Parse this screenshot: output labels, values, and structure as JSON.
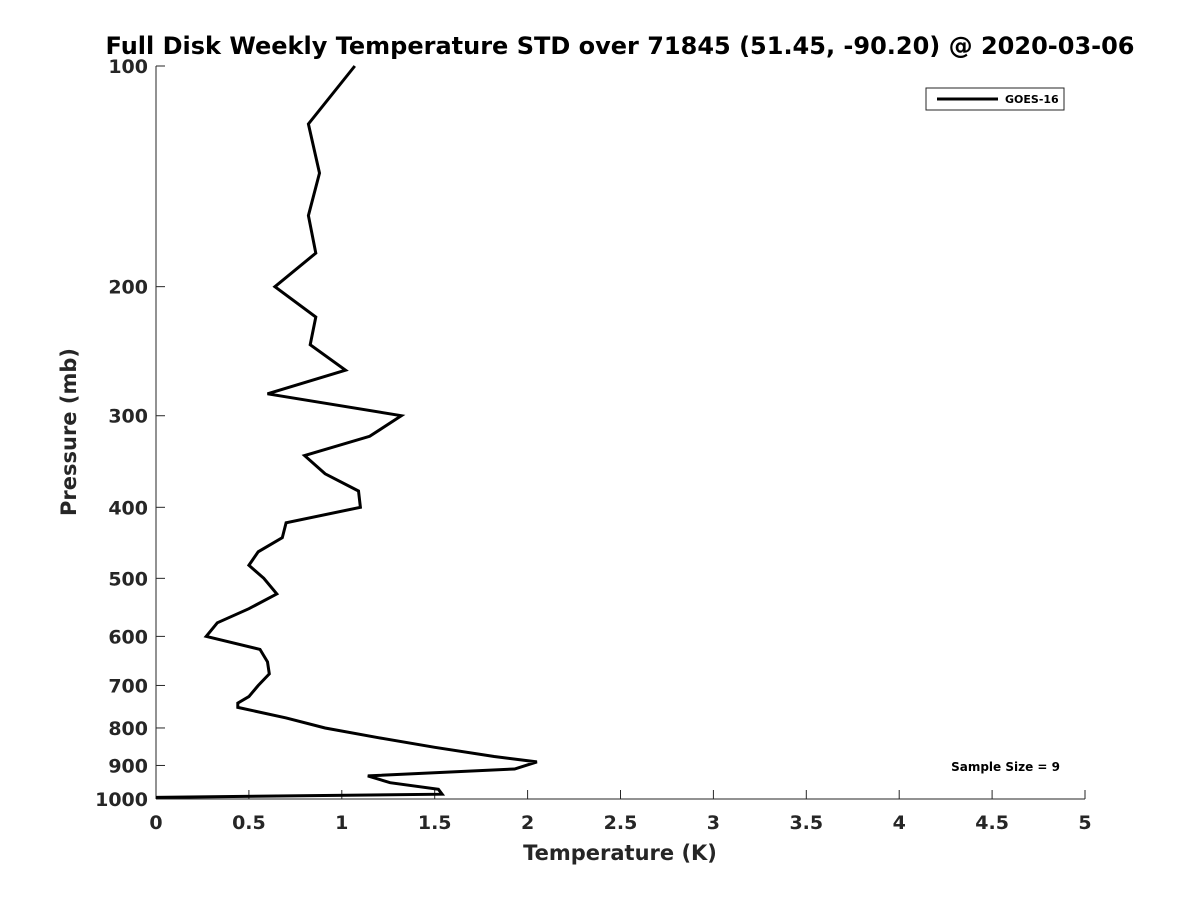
{
  "chart_data": {
    "type": "line",
    "title": "Full Disk Weekly Temperature STD over 71845 (51.45, -90.20) @ 2020-03-06",
    "xlabel": "Temperature (K)",
    "ylabel": "Pressure (mb)",
    "xlim": [
      0,
      5
    ],
    "ylim": [
      100,
      1000
    ],
    "y_scale": "log",
    "y_reversed": true,
    "x_ticks": [
      0,
      0.5,
      1,
      1.5,
      2,
      2.5,
      3,
      3.5,
      4,
      4.5,
      5
    ],
    "x_tick_labels": [
      "0",
      "0.5",
      "1",
      "1.5",
      "2",
      "2.5",
      "3",
      "3.5",
      "4",
      "4.5",
      "5"
    ],
    "y_ticks": [
      100,
      200,
      300,
      400,
      500,
      600,
      700,
      800,
      900,
      1000
    ],
    "y_tick_labels": [
      "100",
      "200",
      "300",
      "400",
      "500",
      "600",
      "700",
      "800",
      "900",
      "1000"
    ],
    "grid": false,
    "legend": {
      "placement": "top-right",
      "entries": [
        "GOES-16"
      ]
    },
    "annotation": "Sample Size = 9",
    "series": [
      {
        "name": "GOES-16",
        "color": "#000000",
        "x": [
          1.07,
          0.82,
          0.88,
          0.82,
          0.86,
          0.64,
          0.86,
          0.83,
          1.02,
          0.6,
          1.32,
          1.15,
          0.8,
          0.91,
          1.09,
          1.1,
          0.7,
          0.68,
          0.55,
          0.5,
          0.58,
          0.65,
          0.5,
          0.33,
          0.27,
          0.56,
          0.6,
          0.61,
          0.55,
          0.5,
          0.44,
          0.44,
          0.7,
          0.91,
          1.2,
          1.5,
          1.82,
          2.05,
          1.93,
          1.14,
          1.26,
          1.52,
          1.54,
          0
        ],
        "y": [
          100,
          120,
          140,
          160,
          180,
          200,
          220,
          240,
          260,
          280,
          300,
          320,
          340,
          360,
          380,
          400,
          420,
          440,
          460,
          480,
          500,
          525,
          550,
          575,
          600,
          625,
          650,
          675,
          700,
          725,
          740,
          750,
          775,
          800,
          825,
          850,
          875,
          890,
          910,
          930,
          950,
          970,
          985,
          995
        ]
      }
    ]
  }
}
